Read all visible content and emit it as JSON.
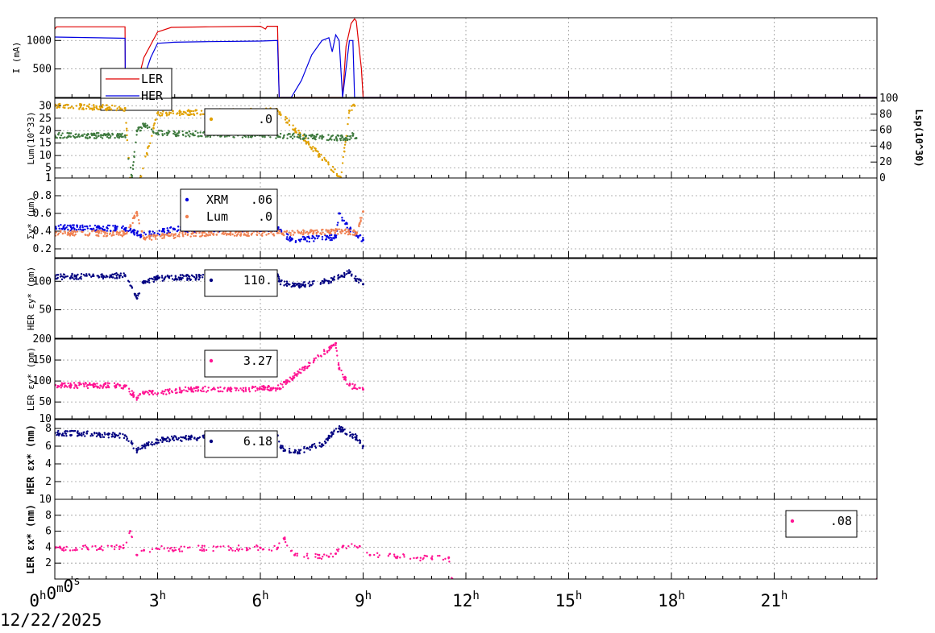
{
  "date_label": "12/22/2025",
  "x_axis": {
    "tick_labels": [
      "0h0m0s",
      "3h",
      "6h",
      "9h",
      "12h",
      "15h",
      "18h",
      "21h"
    ],
    "range_hours": [
      0,
      24
    ]
  },
  "chart_data": [
    {
      "type": "line",
      "ylabel": "I (mA)",
      "yticks": [
        "500",
        "1000"
      ],
      "ylim": [
        0,
        1400
      ],
      "grid": true,
      "legend": {
        "placement": "left",
        "entries": [
          {
            "name": "LER",
            "color": "#e00000"
          },
          {
            "name": "HER",
            "color": "#0000e0"
          }
        ]
      },
      "series": [
        {
          "name": "LER",
          "color": "#e00000",
          "x": [
            0,
            0.05,
            2.05,
            2.06,
            2.3,
            2.6,
            3.0,
            3.4,
            4.5,
            6.0,
            6.15,
            6.2,
            6.5,
            6.55,
            8.4,
            8.5,
            8.65,
            8.75,
            8.8,
            8.95,
            9.0,
            24
          ],
          "y": [
            1200,
            1240,
            1240,
            0,
            0,
            700,
            1150,
            1230,
            1240,
            1250,
            1200,
            1250,
            1250,
            0,
            0,
            900,
            1300,
            1380,
            1340,
            500,
            0,
            0
          ]
        },
        {
          "name": "HER",
          "color": "#0000e0",
          "x": [
            0,
            2.05,
            2.06,
            2.4,
            2.8,
            3.0,
            3.5,
            4.5,
            6.0,
            6.5,
            6.55,
            6.9,
            7.2,
            7.5,
            7.8,
            8.0,
            8.1,
            8.2,
            8.3,
            8.4,
            8.6,
            8.7,
            8.75,
            9.0,
            24
          ],
          "y": [
            1060,
            1040,
            0,
            0,
            700,
            950,
            970,
            980,
            990,
            1000,
            0,
            0,
            300,
            750,
            1000,
            1050,
            800,
            1100,
            1000,
            0,
            1000,
            1000,
            0,
            0,
            0
          ]
        }
      ]
    },
    {
      "type": "scatter",
      "ylabel": "Lum(10^33)",
      "yticks": [
        "1",
        "5",
        "10",
        "15",
        "20",
        "25",
        "30"
      ],
      "ylim": [
        1,
        33
      ],
      "y2label": "Lsp(10^30)",
      "y2ticks": [
        "0",
        "20",
        "40",
        "60",
        "80",
        "100"
      ],
      "y2lim": [
        0,
        100
      ],
      "grid": true,
      "legend": {
        "placement": "center",
        "entries": [
          {
            "name": "",
            "value": ".0",
            "color": "#e0a000"
          }
        ]
      },
      "series": [
        {
          "name": "",
          "color": "#e0a000",
          "x": [
            0,
            2.05,
            2.2,
            2.5,
            3.0,
            6.5,
            8.35,
            8.6,
            8.75
          ],
          "y": [
            30,
            29,
            1,
            1,
            27,
            28,
            1,
            28,
            30
          ]
        },
        {
          "name": "",
          "color": "#3f7a3f",
          "x": [
            0,
            2.05,
            2.25,
            2.4,
            2.6,
            3.0,
            6.5,
            8.5,
            8.7,
            8.8
          ],
          "y": [
            18,
            18,
            1,
            20,
            22,
            19,
            18,
            17,
            18,
            17
          ]
        }
      ]
    },
    {
      "type": "scatter",
      "ylabel": "Σy* (μm)",
      "yticks": [
        "0.2",
        "0.4",
        "0.6",
        "0.8",
        "1"
      ],
      "ylim": [
        0.1,
        1.0
      ],
      "grid": true,
      "legend": {
        "placement": "center",
        "entries": [
          {
            "name": "XRM",
            "value": ".06",
            "color": "#0000e0"
          },
          {
            "name": "Lum",
            "value": ".0",
            "color": "#f08050"
          }
        ]
      },
      "series": [
        {
          "name": "XRM",
          "color": "#0000e0",
          "x": [
            0,
            2.05,
            2.4,
            2.5,
            3.5,
            6.5,
            6.9,
            8.2,
            8.3,
            8.6,
            9.0
          ],
          "y": [
            0.44,
            0.43,
            0.38,
            0.35,
            0.42,
            0.43,
            0.3,
            0.33,
            0.6,
            0.42,
            0.3
          ]
        },
        {
          "name": "Lum",
          "color": "#f08050",
          "x": [
            0,
            2.05,
            2.4,
            2.6,
            4.0,
            6.5,
            8.4,
            8.8,
            9.0
          ],
          "y": [
            0.38,
            0.37,
            0.6,
            0.32,
            0.37,
            0.38,
            0.4,
            0.38,
            0.62
          ]
        }
      ]
    },
    {
      "type": "scatter",
      "ylabel": "HER εy* (pm)",
      "yticks": [
        "50",
        "100"
      ],
      "ylim": [
        0,
        140
      ],
      "grid": true,
      "legend": {
        "placement": "center",
        "entries": [
          {
            "name": "",
            "value": "110.",
            "color": "#000080"
          }
        ]
      },
      "series": [
        {
          "name": "",
          "color": "#000080",
          "x": [
            0,
            2.05,
            2.4,
            2.6,
            3.0,
            4.5,
            6.5,
            6.55,
            7.0,
            8.0,
            8.6,
            9.0
          ],
          "y": [
            108,
            110,
            70,
            100,
            105,
            108,
            112,
            100,
            92,
            100,
            115,
            95
          ]
        }
      ]
    },
    {
      "type": "scatter",
      "ylabel": "LER εy* (pm)",
      "yticks": [
        "10",
        "50",
        "100",
        "150",
        "200"
      ],
      "ylim": [
        10,
        200
      ],
      "grid": true,
      "legend": {
        "placement": "center",
        "entries": [
          {
            "name": "",
            "value": "3.27",
            "color": "#ff1493"
          }
        ]
      },
      "series": [
        {
          "name": "",
          "color": "#ff1493",
          "x": [
            0,
            2.05,
            2.4,
            2.6,
            4.0,
            6.5,
            6.8,
            8.2,
            8.3,
            8.6,
            9.0
          ],
          "y": [
            90,
            88,
            60,
            70,
            80,
            82,
            100,
            190,
            130,
            90,
            80
          ]
        }
      ]
    },
    {
      "type": "scatter",
      "ylabel": "HER εx* (nm)",
      "yticks": [
        "2",
        "4",
        "6",
        "8"
      ],
      "ylim": [
        0,
        9
      ],
      "grid": true,
      "legend": {
        "placement": "center",
        "entries": [
          {
            "name": "",
            "value": "6.18",
            "color": "#000080"
          }
        ]
      },
      "series": [
        {
          "name": "",
          "color": "#000080",
          "x": [
            0,
            2.05,
            2.4,
            2.6,
            3.2,
            5.0,
            6.5,
            6.6,
            7.0,
            7.8,
            8.0,
            8.3,
            8.8,
            9.0
          ],
          "y": [
            7.5,
            7.2,
            5.5,
            6.0,
            6.8,
            7.0,
            7.2,
            5.8,
            5.3,
            6.2,
            7.0,
            8.0,
            7.0,
            6.0
          ]
        }
      ]
    },
    {
      "type": "scatter",
      "ylabel": "LER εx* (nm)",
      "yticks": [
        "2",
        "4",
        "6",
        "8",
        "10"
      ],
      "ylim": [
        0,
        10
      ],
      "grid": true,
      "legend": {
        "placement": "right",
        "entries": [
          {
            "name": "",
            "value": ".08",
            "color": "#ff1493"
          }
        ]
      },
      "series": [
        {
          "name": "",
          "color": "#ff1493",
          "x": [
            0,
            2.0,
            2.2,
            2.4,
            2.6,
            3.0,
            6.5,
            6.7,
            7.0,
            8.0,
            8.4,
            8.9,
            9.2,
            10.0,
            11.0,
            11.5,
            11.6,
            24
          ],
          "y": [
            3.9,
            3.9,
            6.0,
            3.0,
            3.6,
            3.8,
            3.9,
            5.0,
            3.0,
            2.8,
            4.0,
            4.1,
            3.0,
            2.8,
            2.6,
            2.7,
            0,
            0
          ]
        }
      ]
    }
  ]
}
